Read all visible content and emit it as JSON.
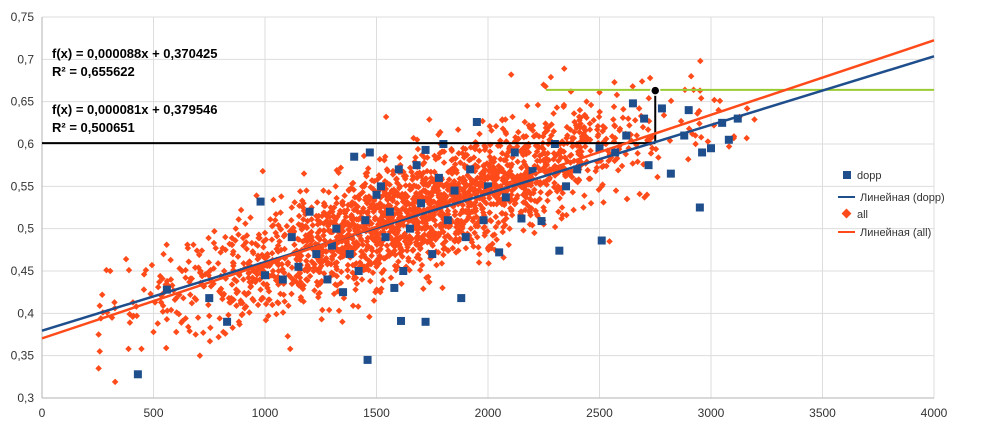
{
  "chart_data": {
    "type": "scatter",
    "xlim": [
      0,
      4000
    ],
    "ylim": [
      0.3,
      0.75
    ],
    "x_ticks": [
      0,
      500,
      1000,
      1500,
      2000,
      2500,
      3000,
      3500,
      4000
    ],
    "x_tick_labels": [
      "0",
      "500",
      "1000",
      "1500",
      "2000",
      "2500",
      "3000",
      "3500",
      "4000"
    ],
    "y_ticks": [
      0.3,
      0.35,
      0.4,
      0.45,
      0.5,
      0.55,
      0.6,
      0.65,
      0.7,
      0.75
    ],
    "y_tick_labels": [
      "0,3",
      "0,35",
      "0,4",
      "0,45",
      "0,5",
      "0,55",
      "0,6",
      "0,65",
      "0,7",
      "0,75"
    ],
    "grid": true,
    "legend_position": "right",
    "series": [
      {
        "name": "dopp",
        "marker": "square",
        "color": "#1f4e8c",
        "points": [
          [
            430,
            0.328
          ],
          [
            560,
            0.428
          ],
          [
            750,
            0.418
          ],
          [
            830,
            0.39
          ],
          [
            980,
            0.532
          ],
          [
            1000,
            0.445
          ],
          [
            1080,
            0.44
          ],
          [
            1120,
            0.49
          ],
          [
            1150,
            0.455
          ],
          [
            1200,
            0.52
          ],
          [
            1230,
            0.47
          ],
          [
            1280,
            0.44
          ],
          [
            1300,
            0.48
          ],
          [
            1320,
            0.5
          ],
          [
            1350,
            0.425
          ],
          [
            1380,
            0.47
          ],
          [
            1400,
            0.585
          ],
          [
            1420,
            0.45
          ],
          [
            1450,
            0.51
          ],
          [
            1470,
            0.59
          ],
          [
            1500,
            0.54
          ],
          [
            1520,
            0.55
          ],
          [
            1540,
            0.49
          ],
          [
            1560,
            0.52
          ],
          [
            1580,
            0.43
          ],
          [
            1600,
            0.57
          ],
          [
            1620,
            0.45
          ],
          [
            1650,
            0.5
          ],
          [
            1680,
            0.575
          ],
          [
            1700,
            0.53
          ],
          [
            1720,
            0.39
          ],
          [
            1750,
            0.47
          ],
          [
            1780,
            0.56
          ],
          [
            1800,
            0.6
          ],
          [
            1820,
            0.51
          ],
          [
            1850,
            0.545
          ],
          [
            1880,
            0.418
          ],
          [
            1900,
            0.49
          ],
          [
            1920,
            0.57
          ],
          [
            1950,
            0.626
          ],
          [
            1980,
            0.51
          ],
          [
            2000,
            0.55
          ],
          [
            2050,
            0.472
          ],
          [
            2080,
            0.537
          ],
          [
            2120,
            0.59
          ],
          [
            2150,
            0.512
          ],
          [
            2200,
            0.568
          ],
          [
            2240,
            0.509
          ],
          [
            2300,
            0.6
          ],
          [
            2320,
            0.474
          ],
          [
            2350,
            0.55
          ],
          [
            2400,
            0.57
          ],
          [
            2500,
            0.595
          ],
          [
            2510,
            0.486
          ],
          [
            2570,
            0.59
          ],
          [
            2620,
            0.61
          ],
          [
            2650,
            0.648
          ],
          [
            2700,
            0.63
          ],
          [
            2720,
            0.575
          ],
          [
            2780,
            0.642
          ],
          [
            2820,
            0.565
          ],
          [
            2880,
            0.61
          ],
          [
            2900,
            0.64
          ],
          [
            2950,
            0.525
          ],
          [
            2960,
            0.59
          ],
          [
            3000,
            0.595
          ],
          [
            3050,
            0.625
          ],
          [
            3080,
            0.605
          ],
          [
            3120,
            0.63
          ],
          [
            1460,
            0.345
          ],
          [
            1610,
            0.391
          ],
          [
            1720,
            0.593
          ]
        ]
      },
      {
        "name": "all",
        "marker": "diamond",
        "color": "#ff4a1a",
        "points": []
      }
    ],
    "trendlines": [
      {
        "name": "Линейная (dopp)",
        "color": "#1f4e8c",
        "slope": 8.1e-05,
        "intercept": 0.379546
      },
      {
        "name": "Линейная (all)",
        "color": "#ff4a1a",
        "slope": 8.8e-05,
        "intercept": 0.370425
      }
    ],
    "annotations": {
      "eq_all": {
        "formula": "f(x) = 0,000088x + 0,370425",
        "r2": "R² = 0,655622"
      },
      "eq_dopp": {
        "formula": "f(x) = 0,000081x + 0,379546",
        "r2": "R² = 0,500651"
      },
      "ref_lines": [
        {
          "type": "h",
          "y": 0.601,
          "x_from": 0,
          "x_to": 2750,
          "color": "#000000"
        },
        {
          "type": "v",
          "x": 2750,
          "y_from": 0.601,
          "y_to": 0.663,
          "color": "#000000"
        },
        {
          "type": "h",
          "y": 0.664,
          "x_from": 2260,
          "x_to": 4000,
          "color": "#99cc33"
        }
      ],
      "marker_point": {
        "x": 2750,
        "y": 0.663
      }
    }
  }
}
